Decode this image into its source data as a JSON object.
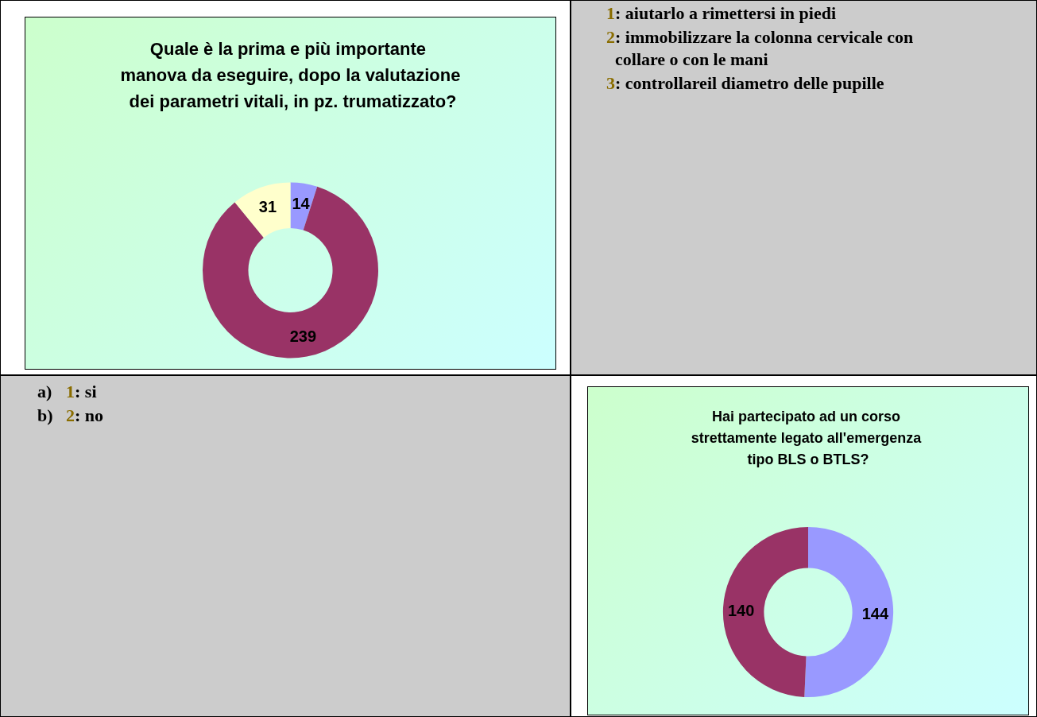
{
  "chart_data": [
    {
      "type": "donut",
      "title": "Quale è la prima e più importante manova da eseguire, dopo la valutazione dei parametri vitali, in pz. trumatizzato?",
      "categories": [
        null,
        null,
        null
      ],
      "values": [
        14,
        239,
        31
      ],
      "colors": [
        "#9999ff",
        "#993366",
        "#ffffcc"
      ],
      "data_labels": true
    },
    {
      "type": "other",
      "annotations": [
        "1: aiutarlo a rimettersi in piedi",
        "2: immobilizzare la colonna cervicale con collare o con le mani",
        "3: controllareil diametro delle pupille"
      ]
    },
    {
      "type": "other",
      "annotations": [
        "a) 1: si",
        "b) 2: no"
      ]
    },
    {
      "type": "donut",
      "title": "Hai partecipato ad un corso strettamente legato all'emergenza tipo BLS o BTLS?",
      "categories": [
        null,
        null
      ],
      "values": [
        144,
        140
      ],
      "colors": [
        "#9999ff",
        "#993366"
      ],
      "data_labels": true
    }
  ]
}
